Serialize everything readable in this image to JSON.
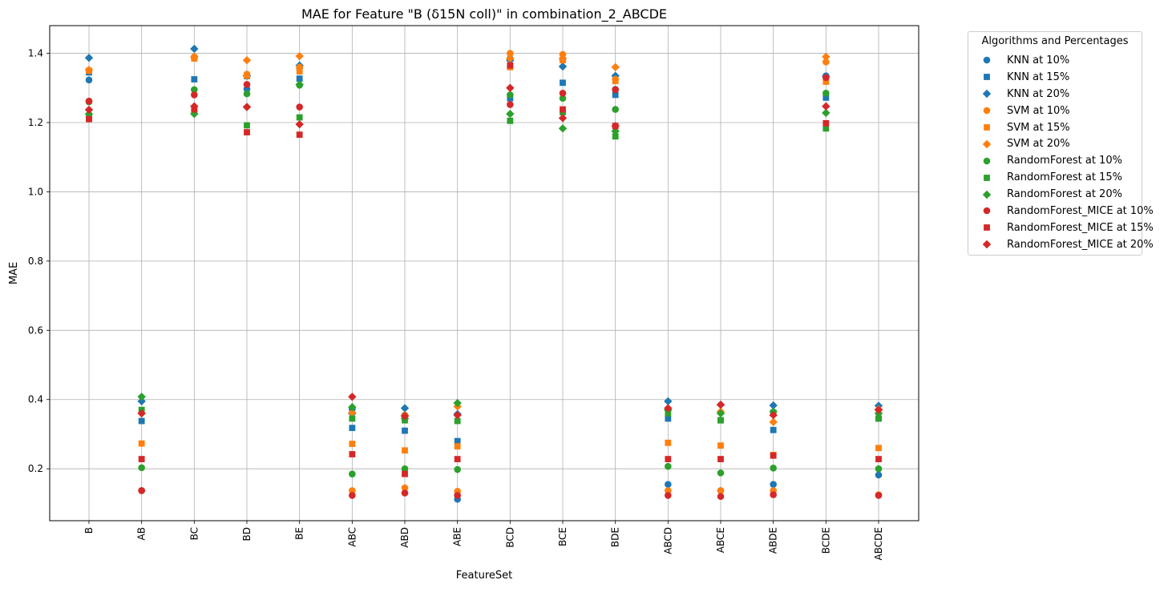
{
  "chart_data": {
    "type": "scatter",
    "title": "MAE for Feature \"B (δ15N coll)\" in combination_2_ABCDE",
    "xlabel": "FeatureSet",
    "ylabel": "MAE",
    "ylim": [
      0.05,
      1.48
    ],
    "yticks": [
      "0.2",
      "0.4",
      "0.6",
      "0.8",
      "1.0",
      "1.2",
      "1.4"
    ],
    "grid": true,
    "legend_title": "Algorithms and Percentages",
    "legend_position": "outside-right",
    "categories": [
      "B",
      "AB",
      "BC",
      "BD",
      "BE",
      "ABC",
      "ABD",
      "ABE",
      "BCD",
      "BCE",
      "BDE",
      "ABCD",
      "ABCE",
      "ABDE",
      "BCDE",
      "ABCDE"
    ],
    "series": [
      {
        "name": "KNN at 10%",
        "color": "#1f77b4",
        "marker": "circle",
        "values": [
          1.323,
          0.137,
          1.387,
          1.297,
          1.357,
          0.372,
          0.355,
          0.112,
          1.385,
          1.382,
          1.296,
          0.155,
          0.137,
          0.155,
          1.335,
          0.182
        ]
      },
      {
        "name": "KNN at 15%",
        "color": "#1f77b4",
        "marker": "square",
        "values": [
          1.345,
          0.338,
          1.325,
          1.334,
          1.327,
          0.318,
          0.31,
          0.28,
          1.27,
          1.315,
          1.28,
          0.345,
          0.34,
          0.312,
          1.272,
          0.345
        ]
      },
      {
        "name": "KNN at 20%",
        "color": "#1f77b4",
        "marker": "diamond",
        "values": [
          1.387,
          0.395,
          1.413,
          1.335,
          1.365,
          0.36,
          0.375,
          0.358,
          1.38,
          1.362,
          1.335,
          0.395,
          0.385,
          0.383,
          1.333,
          0.382
        ]
      },
      {
        "name": "SVM at 10%",
        "color": "#ff7f0e",
        "marker": "circle",
        "values": [
          1.35,
          0.137,
          1.39,
          1.34,
          1.36,
          0.137,
          0.145,
          0.135,
          1.4,
          1.397,
          1.325,
          0.137,
          0.137,
          0.137,
          1.375,
          0.125
        ]
      },
      {
        "name": "SVM at 15%",
        "color": "#ff7f0e",
        "marker": "square",
        "values": [
          1.35,
          0.273,
          1.385,
          1.335,
          1.348,
          0.272,
          0.253,
          0.265,
          1.36,
          1.38,
          1.32,
          0.275,
          0.267,
          0.24,
          1.318,
          0.26
        ]
      },
      {
        "name": "SVM at 20%",
        "color": "#ff7f0e",
        "marker": "diamond",
        "values": [
          1.352,
          0.36,
          1.39,
          1.38,
          1.392,
          0.362,
          0.355,
          0.38,
          1.385,
          1.385,
          1.36,
          0.37,
          0.365,
          0.335,
          1.39,
          0.372
        ]
      },
      {
        "name": "RandomForest at 10%",
        "color": "#2ca02c",
        "marker": "circle",
        "values": [
          1.26,
          0.203,
          1.295,
          1.283,
          1.308,
          0.185,
          0.2,
          0.198,
          1.28,
          1.27,
          1.238,
          0.207,
          0.188,
          0.202,
          1.285,
          0.2
        ]
      },
      {
        "name": "RandomForest at 15%",
        "color": "#2ca02c",
        "marker": "square",
        "values": [
          1.215,
          0.37,
          1.232,
          1.192,
          1.215,
          0.345,
          0.34,
          0.338,
          1.205,
          1.23,
          1.16,
          0.36,
          0.34,
          0.362,
          1.183,
          0.345
        ]
      },
      {
        "name": "RandomForest at 20%",
        "color": "#2ca02c",
        "marker": "diamond",
        "values": [
          1.225,
          0.408,
          1.225,
          1.245,
          1.31,
          0.378,
          0.345,
          0.39,
          1.225,
          1.183,
          1.175,
          0.37,
          0.36,
          0.365,
          1.228,
          0.36
        ]
      },
      {
        "name": "RandomForest_MICE at 10%",
        "color": "#d62728",
        "marker": "circle",
        "values": [
          1.262,
          0.137,
          1.28,
          1.31,
          1.245,
          0.123,
          0.13,
          0.123,
          1.252,
          1.285,
          1.295,
          0.123,
          0.12,
          0.125,
          1.33,
          0.123
        ]
      },
      {
        "name": "RandomForest_MICE at 15%",
        "color": "#d62728",
        "marker": "square",
        "values": [
          1.21,
          0.228,
          1.238,
          1.172,
          1.165,
          0.242,
          0.185,
          0.228,
          1.365,
          1.238,
          1.19,
          0.228,
          0.228,
          0.238,
          1.198,
          0.228
        ]
      },
      {
        "name": "RandomForest_MICE at 20%",
        "color": "#d62728",
        "marker": "diamond",
        "values": [
          1.237,
          0.36,
          1.247,
          1.245,
          1.195,
          0.408,
          0.352,
          0.355,
          1.3,
          1.213,
          1.19,
          0.375,
          0.385,
          0.355,
          1.247,
          0.37
        ]
      }
    ]
  }
}
